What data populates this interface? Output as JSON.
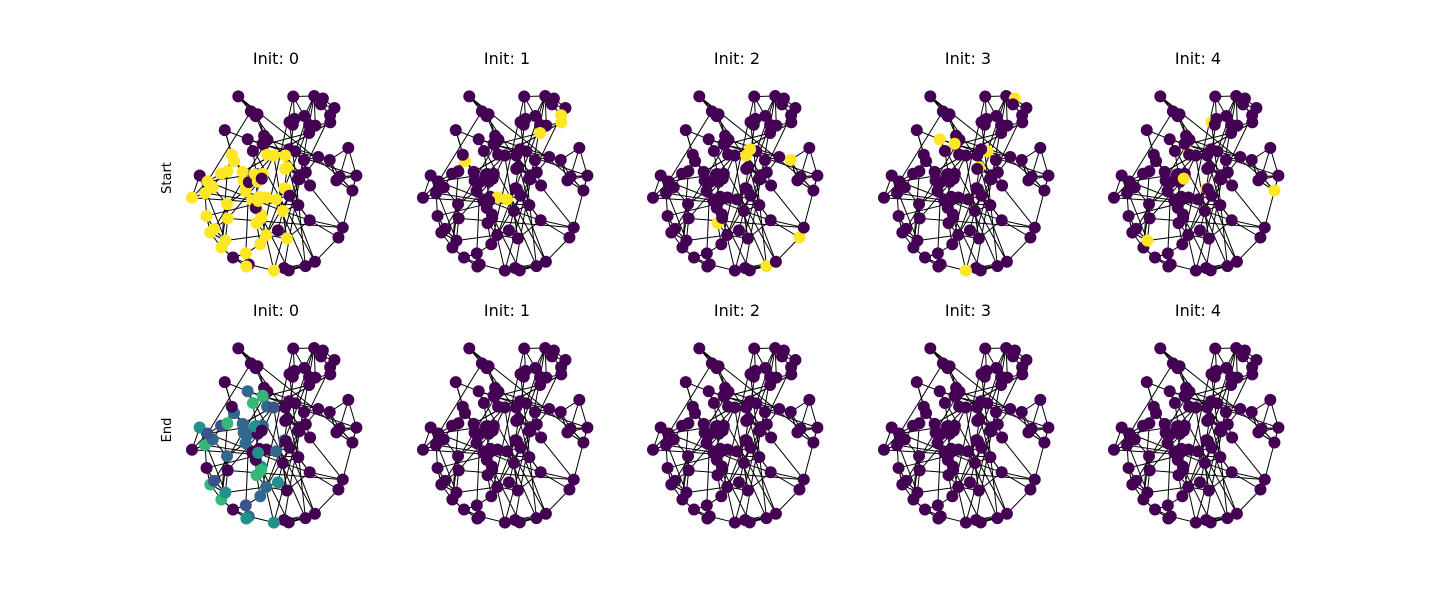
{
  "figure": {
    "rows": [
      {
        "label": "Start",
        "panels": [
          {
            "title": "Init: 0",
            "highlight": "many-yellow"
          },
          {
            "title": "Init: 1",
            "highlight": "few-yellow"
          },
          {
            "title": "Init: 2",
            "highlight": "few-yellow"
          },
          {
            "title": "Init: 3",
            "highlight": "few-yellow"
          },
          {
            "title": "Init: 4",
            "highlight": "few-yellow"
          }
        ]
      },
      {
        "label": "End",
        "panels": [
          {
            "title": "Init: 0",
            "highlight": "diffused"
          },
          {
            "title": "Init: 1",
            "highlight": "none"
          },
          {
            "title": "Init: 2",
            "highlight": "none"
          },
          {
            "title": "Init: 3",
            "highlight": "none"
          },
          {
            "title": "Init: 4",
            "highlight": "none"
          }
        ]
      }
    ],
    "colors": {
      "low": "#440154",
      "dark_blue": "#3b528b",
      "blue": "#31688e",
      "teal": "#21918c",
      "green": "#35b779",
      "high": "#fde725",
      "edge": "#000000"
    }
  }
}
